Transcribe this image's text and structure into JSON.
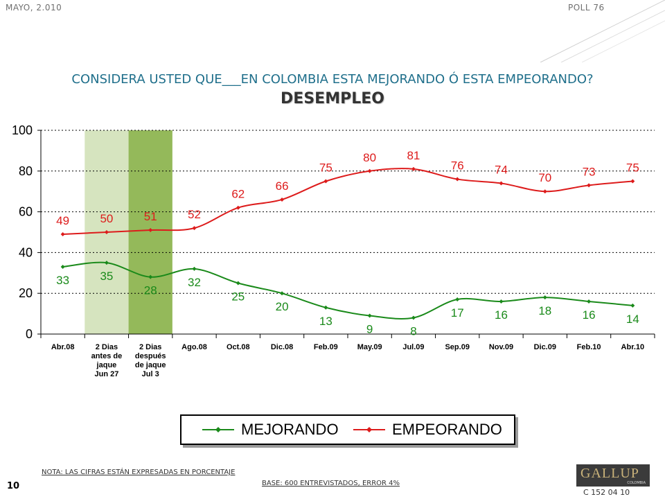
{
  "header": {
    "date": "MAYO, 2.010",
    "poll": "POLL 76"
  },
  "title": "CONSIDERA USTED QUE___EN COLOMBIA ESTA MEJORANDO Ó ESTA EMPEORANDO?",
  "subtitle": "DESEMPLEO",
  "colors": {
    "mejorando": "#1a8a1a",
    "empeorando": "#dd1b1b",
    "band_light": "#d6e4bf",
    "band_dark": "#94b95a",
    "title": "#1f6f8b"
  },
  "chart_data": {
    "type": "line",
    "categories": [
      [
        "Abr.08"
      ],
      [
        "2 Dias",
        "antes de",
        "jaque",
        "Jun 27"
      ],
      [
        "2 Dias",
        "después",
        "de jaque",
        "Jul 3"
      ],
      [
        "Ago.08"
      ],
      [
        "Oct.08"
      ],
      [
        "Dic.08"
      ],
      [
        "Feb.09"
      ],
      [
        "May.09"
      ],
      [
        "Jul.09"
      ],
      [
        "Sep.09"
      ],
      [
        "Nov.09"
      ],
      [
        "Dic.09"
      ],
      [
        "Feb.10"
      ],
      [
        "Abr.10"
      ]
    ],
    "series": [
      {
        "name": "MEJORANDO",
        "values": [
          33,
          35,
          28,
          32,
          25,
          20,
          13,
          9,
          8,
          17,
          16,
          18,
          16,
          14
        ]
      },
      {
        "name": "EMPEORANDO",
        "values": [
          49,
          50,
          51,
          52,
          62,
          66,
          75,
          80,
          81,
          76,
          74,
          70,
          73,
          75
        ]
      }
    ],
    "ylim": [
      0,
      100
    ],
    "yticks": [
      0,
      20,
      40,
      60,
      80,
      100
    ],
    "grid": true,
    "highlight_bands": [
      {
        "category_index": 1,
        "shade": "light"
      },
      {
        "category_index": 2,
        "shade": "dark"
      }
    ],
    "legend_position": "bottom"
  },
  "legend": {
    "mejorando": "MEJORANDO",
    "empeorando": "EMPEORANDO"
  },
  "note": "NOTA: LAS CIFRAS ESTÁN EXPRESADAS EN PORCENTAJE",
  "base": "BASE: 600 ENTREVISTADOS, ERROR 4%",
  "page_number": "10",
  "logo": {
    "name": "GALLUP",
    "sub": "COLOMBIA"
  },
  "code": "C 152 04 10"
}
